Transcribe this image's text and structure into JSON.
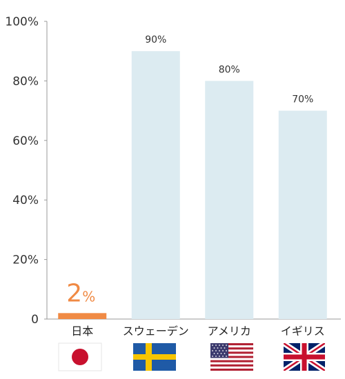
{
  "chart_data": {
    "type": "bar",
    "categories": [
      "日本",
      "スウェーデン",
      "アメリカ",
      "イギリス"
    ],
    "values": [
      2,
      90,
      80,
      70
    ],
    "value_labels": [
      "2%",
      "90%",
      "80%",
      "70%"
    ],
    "highlight": {
      "number": "2",
      "unit": "%"
    },
    "ylim": [
      0,
      100
    ],
    "yticks": [
      0,
      20,
      40,
      60,
      80,
      100
    ],
    "ytick_labels": [
      "0",
      "20%",
      "40%",
      "60%",
      "80%",
      "100%"
    ],
    "grid": false,
    "legend": "none",
    "flags": [
      "japan-flag",
      "sweden-flag",
      "usa-flag",
      "uk-flag"
    ],
    "colors": {
      "highlight_bar": "#f08a44",
      "bar": "#dcebf1",
      "axis": "#999999",
      "highlight_text": "#f08a44"
    }
  }
}
